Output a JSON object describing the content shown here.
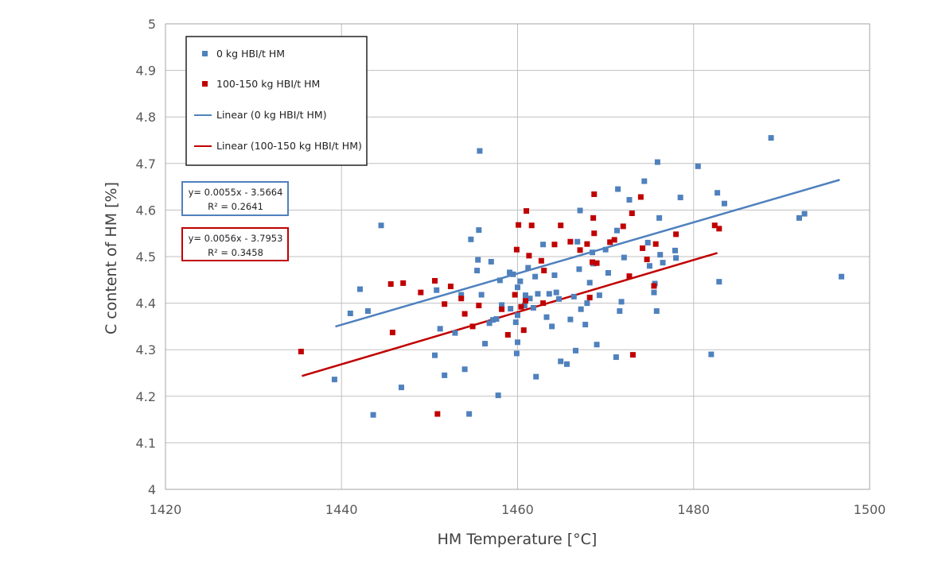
{
  "chart_data": {
    "type": "scatter",
    "xlabel": "HM Temperature [°C]",
    "ylabel": "C content of HM [%]",
    "xlim": [
      1420,
      1500
    ],
    "ylim": [
      4,
      5
    ],
    "x_ticks": [
      "1420",
      "1440",
      "1460",
      "1480",
      "1500"
    ],
    "y_ticks": [
      "4",
      "4.1",
      "4.2",
      "4.3",
      "4.4",
      "4.5",
      "4.6",
      "4.7",
      "4.8",
      "4.9",
      "5"
    ],
    "grid": true,
    "legend_placement": "top-left",
    "series": [
      {
        "name": "0 kg HBI/t HM",
        "color": "#4F81BD",
        "marker": "square",
        "points": [
          [
            1439.2,
            4.236
          ],
          [
            1441.0,
            4.378
          ],
          [
            1442.1,
            4.43
          ],
          [
            1443.0,
            4.383
          ],
          [
            1443.6,
            4.16
          ],
          [
            1444.5,
            4.567
          ],
          [
            1446.8,
            4.219
          ],
          [
            1450.6,
            4.288
          ],
          [
            1450.8,
            4.428
          ],
          [
            1451.2,
            4.345
          ],
          [
            1451.7,
            4.245
          ],
          [
            1452.9,
            4.336
          ],
          [
            1453.6,
            4.418
          ],
          [
            1454.0,
            4.258
          ],
          [
            1454.5,
            4.162
          ],
          [
            1454.7,
            4.537
          ],
          [
            1455.4,
            4.47
          ],
          [
            1455.5,
            4.493
          ],
          [
            1455.6,
            4.557
          ],
          [
            1455.7,
            4.727
          ],
          [
            1455.9,
            4.418
          ],
          [
            1456.3,
            4.313
          ],
          [
            1456.8,
            4.357
          ],
          [
            1457.0,
            4.489
          ],
          [
            1457.2,
            4.364
          ],
          [
            1457.6,
            4.366
          ],
          [
            1457.8,
            4.202
          ],
          [
            1458.0,
            4.449
          ],
          [
            1458.2,
            4.396
          ],
          [
            1459.1,
            4.466
          ],
          [
            1459.2,
            4.388
          ],
          [
            1459.5,
            4.462
          ],
          [
            1459.8,
            4.359
          ],
          [
            1459.9,
            4.292
          ],
          [
            1460.0,
            4.316
          ],
          [
            1460.0,
            4.434
          ],
          [
            1460.0,
            4.374
          ],
          [
            1460.3,
            4.447
          ],
          [
            1460.8,
            4.395
          ],
          [
            1460.9,
            4.417
          ],
          [
            1461.2,
            4.476
          ],
          [
            1461.4,
            4.41
          ],
          [
            1461.8,
            4.39
          ],
          [
            1462.0,
            4.457
          ],
          [
            1462.1,
            4.242
          ],
          [
            1462.3,
            4.42
          ],
          [
            1462.9,
            4.526
          ],
          [
            1463.3,
            4.37
          ],
          [
            1463.6,
            4.42
          ],
          [
            1463.9,
            4.35
          ],
          [
            1464.2,
            4.46
          ],
          [
            1464.4,
            4.423
          ],
          [
            1464.7,
            4.409
          ],
          [
            1464.9,
            4.275
          ],
          [
            1465.6,
            4.269
          ],
          [
            1466.0,
            4.365
          ],
          [
            1466.4,
            4.414
          ],
          [
            1466.6,
            4.298
          ],
          [
            1466.8,
            4.532
          ],
          [
            1467.0,
            4.473
          ],
          [
            1467.1,
            4.599
          ],
          [
            1467.2,
            4.387
          ],
          [
            1467.7,
            4.354
          ],
          [
            1467.9,
            4.4
          ],
          [
            1468.2,
            4.444
          ],
          [
            1468.5,
            4.509
          ],
          [
            1468.6,
            4.485
          ],
          [
            1469.0,
            4.311
          ],
          [
            1469.3,
            4.417
          ],
          [
            1470.0,
            4.515
          ],
          [
            1470.3,
            4.465
          ],
          [
            1471.2,
            4.284
          ],
          [
            1471.3,
            4.556
          ],
          [
            1471.4,
            4.645
          ],
          [
            1471.6,
            4.383
          ],
          [
            1471.8,
            4.403
          ],
          [
            1472.1,
            4.498
          ],
          [
            1472.7,
            4.622
          ],
          [
            1474.4,
            4.662
          ],
          [
            1474.8,
            4.53
          ],
          [
            1475.0,
            4.48
          ],
          [
            1475.5,
            4.423
          ],
          [
            1475.6,
            4.442
          ],
          [
            1475.8,
            4.383
          ],
          [
            1475.9,
            4.703
          ],
          [
            1476.1,
            4.583
          ],
          [
            1476.2,
            4.504
          ],
          [
            1476.5,
            4.487
          ],
          [
            1477.9,
            4.513
          ],
          [
            1478.0,
            4.497
          ],
          [
            1478.5,
            4.627
          ],
          [
            1480.5,
            4.694
          ],
          [
            1482.0,
            4.29
          ],
          [
            1482.7,
            4.637
          ],
          [
            1482.9,
            4.446
          ],
          [
            1483.5,
            4.614
          ],
          [
            1488.8,
            4.755
          ],
          [
            1492.0,
            4.583
          ],
          [
            1492.6,
            4.592
          ],
          [
            1496.8,
            4.457
          ]
        ],
        "trendline": {
          "name": "Linear (0 kg HBI/t HM)",
          "equation": "y= 0.0055x - 3.5664",
          "r2": "R² = 0.2641",
          "slope": 0.0055,
          "intercept": -3.5664,
          "r2_value": 0.2641,
          "x_range": [
            1439.3,
            1496.6
          ]
        }
      },
      {
        "name": "100-150 kg HBI/t HM",
        "color": "#C00000",
        "marker": "square",
        "points": [
          [
            1435.4,
            4.296
          ],
          [
            1445.6,
            4.441
          ],
          [
            1445.8,
            4.337
          ],
          [
            1447.0,
            4.443
          ],
          [
            1449.0,
            4.423
          ],
          [
            1450.6,
            4.448
          ],
          [
            1450.9,
            4.162
          ],
          [
            1451.7,
            4.398
          ],
          [
            1452.4,
            4.436
          ],
          [
            1453.6,
            4.41
          ],
          [
            1454.0,
            4.377
          ],
          [
            1454.9,
            4.35
          ],
          [
            1455.6,
            4.395
          ],
          [
            1458.2,
            4.387
          ],
          [
            1458.9,
            4.332
          ],
          [
            1459.7,
            4.418
          ],
          [
            1459.9,
            4.515
          ],
          [
            1460.1,
            4.568
          ],
          [
            1460.4,
            4.392
          ],
          [
            1460.7,
            4.342
          ],
          [
            1460.9,
            4.405
          ],
          [
            1461.0,
            4.598
          ],
          [
            1461.3,
            4.502
          ],
          [
            1461.6,
            4.567
          ],
          [
            1462.7,
            4.491
          ],
          [
            1462.9,
            4.4
          ],
          [
            1463.0,
            4.47
          ],
          [
            1464.2,
            4.526
          ],
          [
            1464.9,
            4.567
          ],
          [
            1466.0,
            4.532
          ],
          [
            1467.1,
            4.514
          ],
          [
            1467.9,
            4.527
          ],
          [
            1468.2,
            4.412
          ],
          [
            1468.5,
            4.488
          ],
          [
            1468.6,
            4.583
          ],
          [
            1468.7,
            4.634
          ],
          [
            1468.7,
            4.55
          ],
          [
            1469.0,
            4.486
          ],
          [
            1470.5,
            4.531
          ],
          [
            1471.0,
            4.536
          ],
          [
            1472.0,
            4.565
          ],
          [
            1472.7,
            4.458
          ],
          [
            1473.0,
            4.593
          ],
          [
            1473.1,
            4.289
          ],
          [
            1474.0,
            4.628
          ],
          [
            1474.2,
            4.518
          ],
          [
            1474.7,
            4.494
          ],
          [
            1475.5,
            4.437
          ],
          [
            1475.7,
            4.527
          ],
          [
            1478.0,
            4.548
          ],
          [
            1482.4,
            4.567
          ],
          [
            1482.9,
            4.56
          ]
        ],
        "trendline": {
          "name": "Linear (100-150 kg HBI/t HM)",
          "equation": "y= 0.0056x - 3.7953",
          "r2": "R² = 0.3458",
          "slope": 0.0056,
          "intercept": -3.7953,
          "r2_value": 0.3458,
          "x_range": [
            1435.5,
            1482.7
          ]
        }
      }
    ]
  }
}
